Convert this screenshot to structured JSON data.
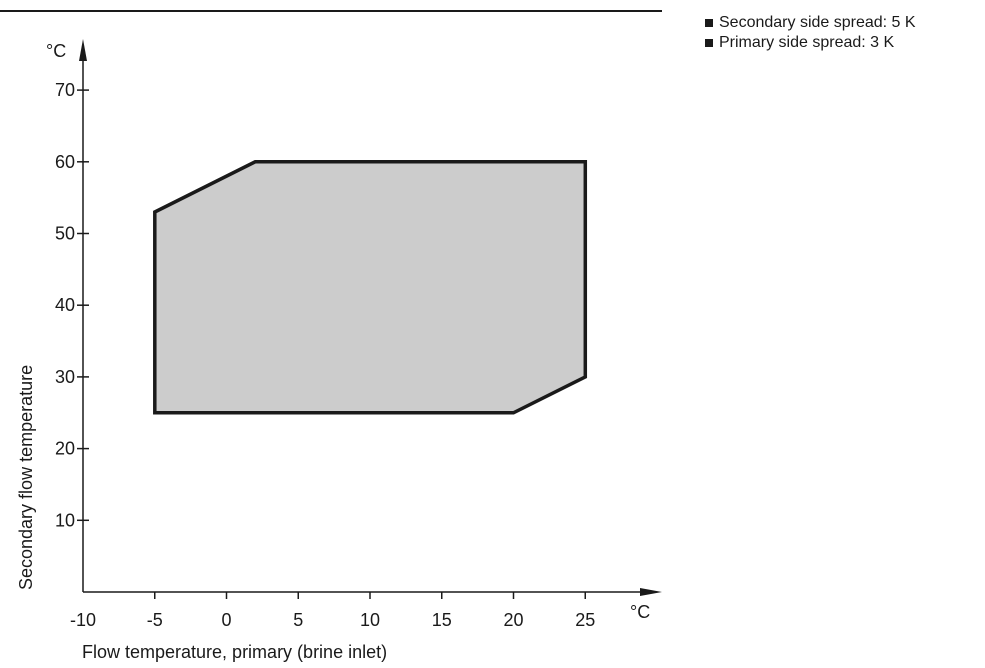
{
  "chart_data": {
    "type": "area",
    "title": "",
    "xlabel": "Flow temperature, primary (brine inlet)",
    "ylabel": "Secondary flow temperature",
    "x_unit": "°C",
    "y_unit": "°C",
    "xlim": [
      -10,
      30
    ],
    "ylim": [
      0,
      77
    ],
    "x_ticks": [
      -10,
      -5,
      0,
      5,
      10,
      15,
      20,
      25
    ],
    "y_ticks": [
      10,
      20,
      30,
      40,
      50,
      60,
      70
    ],
    "grid": false,
    "legend_position": "top-right",
    "series": [
      {
        "x": [
          -5,
          -5,
          2,
          25,
          25,
          20,
          -5
        ],
        "y": [
          25,
          53,
          60,
          60,
          30,
          25,
          25
        ]
      }
    ],
    "colors": {
      "fill": "#cccccc",
      "outline": "#1a1a1a",
      "axis": "#1a1a1a"
    }
  },
  "legend": {
    "items": [
      {
        "label": "Secondary side spread: 5 K"
      },
      {
        "label": "Primary side spread: 3 K"
      }
    ]
  }
}
